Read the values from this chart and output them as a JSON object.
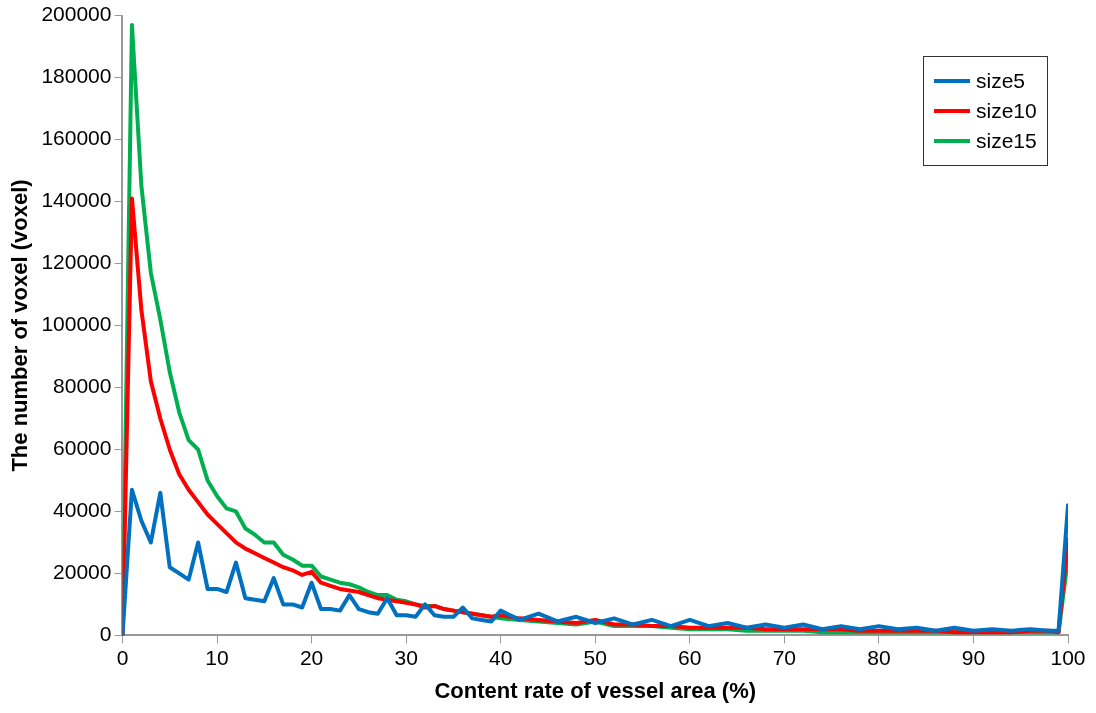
{
  "chart_data": {
    "type": "line",
    "xlabel": "Content rate of vessel area (%)",
    "ylabel": "The number of voxel (voxel)",
    "x": [
      0,
      1,
      2,
      3,
      4,
      5,
      6,
      7,
      8,
      9,
      10,
      11,
      12,
      13,
      14,
      15,
      16,
      17,
      18,
      19,
      20,
      21,
      22,
      23,
      24,
      25,
      26,
      27,
      28,
      29,
      30,
      31,
      32,
      33,
      34,
      35,
      36,
      37,
      38,
      39,
      40,
      42,
      44,
      46,
      48,
      50,
      52,
      54,
      56,
      58,
      60,
      62,
      64,
      66,
      68,
      70,
      72,
      74,
      76,
      78,
      80,
      82,
      84,
      86,
      88,
      90,
      92,
      94,
      96,
      98,
      99,
      100
    ],
    "series": [
      {
        "name": "size5",
        "color": "#0070c0",
        "values": [
          0,
          47000,
          37000,
          30000,
          46000,
          22000,
          20000,
          18000,
          30000,
          15000,
          15000,
          14000,
          23500,
          12000,
          11500,
          11000,
          18500,
          10000,
          10000,
          9000,
          17000,
          8500,
          8500,
          8000,
          13000,
          8500,
          7500,
          7000,
          12000,
          6500,
          6500,
          6000,
          10000,
          6500,
          6000,
          6000,
          9000,
          5500,
          5000,
          4500,
          8000,
          5000,
          7000,
          4500,
          6000,
          4000,
          5500,
          3500,
          5000,
          3000,
          5000,
          3000,
          4000,
          2500,
          3500,
          2500,
          3500,
          2000,
          3000,
          2000,
          3000,
          2000,
          2500,
          1500,
          2500,
          1500,
          2000,
          1500,
          2000,
          1500,
          1500,
          42000
        ]
      },
      {
        "name": "size10",
        "color": "#ff0000",
        "values": [
          0,
          141000,
          105000,
          82000,
          70000,
          60000,
          52000,
          47000,
          43000,
          39000,
          36000,
          33000,
          30000,
          28000,
          26500,
          25000,
          23500,
          22000,
          21000,
          19500,
          20500,
          17000,
          16000,
          15000,
          14500,
          14000,
          13000,
          12000,
          11500,
          11000,
          10500,
          10000,
          9000,
          9500,
          8500,
          8000,
          7500,
          7000,
          6500,
          6000,
          6500,
          5500,
          5000,
          4500,
          4000,
          5000,
          3500,
          3500,
          3000,
          3000,
          2500,
          2500,
          2500,
          2500,
          2000,
          2000,
          2000,
          2000,
          2000,
          1500,
          1500,
          1500,
          1500,
          1500,
          1000,
          1000,
          1000,
          1000,
          1500,
          1500,
          1000,
          31000
        ]
      },
      {
        "name": "size15",
        "color": "#00b050",
        "values": [
          0,
          197000,
          145000,
          117000,
          102000,
          85000,
          72000,
          63000,
          60000,
          50000,
          45000,
          41000,
          40000,
          34500,
          32500,
          30000,
          30000,
          26000,
          24500,
          22500,
          22500,
          19000,
          18000,
          17000,
          16500,
          15500,
          14000,
          13000,
          13000,
          11500,
          11000,
          10000,
          9500,
          9500,
          8500,
          8000,
          7500,
          7000,
          6500,
          6000,
          5500,
          5000,
          4500,
          4000,
          3500,
          4500,
          3000,
          3000,
          3000,
          2500,
          2000,
          2000,
          2000,
          1500,
          1500,
          1500,
          1500,
          1000,
          1000,
          1000,
          1000,
          1000,
          1000,
          1000,
          1000,
          1000,
          1000,
          1000,
          1000,
          1000,
          1000,
          25000
        ]
      }
    ],
    "xlim": [
      0,
      100
    ],
    "xticks": [
      0,
      10,
      20,
      30,
      40,
      50,
      60,
      70,
      80,
      90,
      100
    ],
    "ylim": [
      0,
      200000
    ],
    "yticks": [
      0,
      20000,
      40000,
      60000,
      80000,
      100000,
      120000,
      140000,
      160000,
      180000,
      200000
    ],
    "grid": false,
    "legend": "top right",
    "marker": "none",
    "line_style": "solid"
  }
}
